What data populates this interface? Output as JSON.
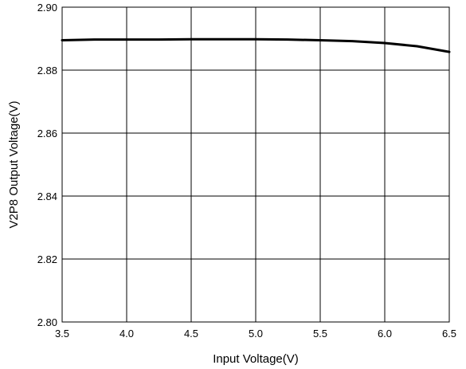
{
  "chart_data": {
    "type": "line",
    "title": "",
    "xlabel": "Input Voltage(V)",
    "ylabel": "V2P8 Output Voltage(V)",
    "xlim": [
      3.5,
      6.5
    ],
    "ylim": [
      2.8,
      2.9
    ],
    "x_ticks": [
      "3.5",
      "4.0",
      "4.5",
      "5.0",
      "5.5",
      "6.0",
      "6.5"
    ],
    "y_ticks": [
      "2.80",
      "2.82",
      "2.84",
      "2.86",
      "2.88",
      "2.90"
    ],
    "x_tick_values": [
      3.5,
      4.0,
      4.5,
      5.0,
      5.5,
      6.0,
      6.5
    ],
    "y_tick_values": [
      2.8,
      2.82,
      2.84,
      2.86,
      2.88,
      2.9
    ],
    "grid": true,
    "series": [
      {
        "x": [
          3.5,
          3.75,
          4.0,
          4.25,
          4.5,
          4.75,
          5.0,
          5.25,
          5.5,
          5.75,
          6.0,
          6.25,
          6.5
        ],
        "values": [
          2.8895,
          2.8897,
          2.8897,
          2.8897,
          2.8898,
          2.8898,
          2.8898,
          2.8897,
          2.8895,
          2.8892,
          2.8886,
          2.8876,
          2.8858
        ],
        "color": "#000000"
      }
    ]
  }
}
